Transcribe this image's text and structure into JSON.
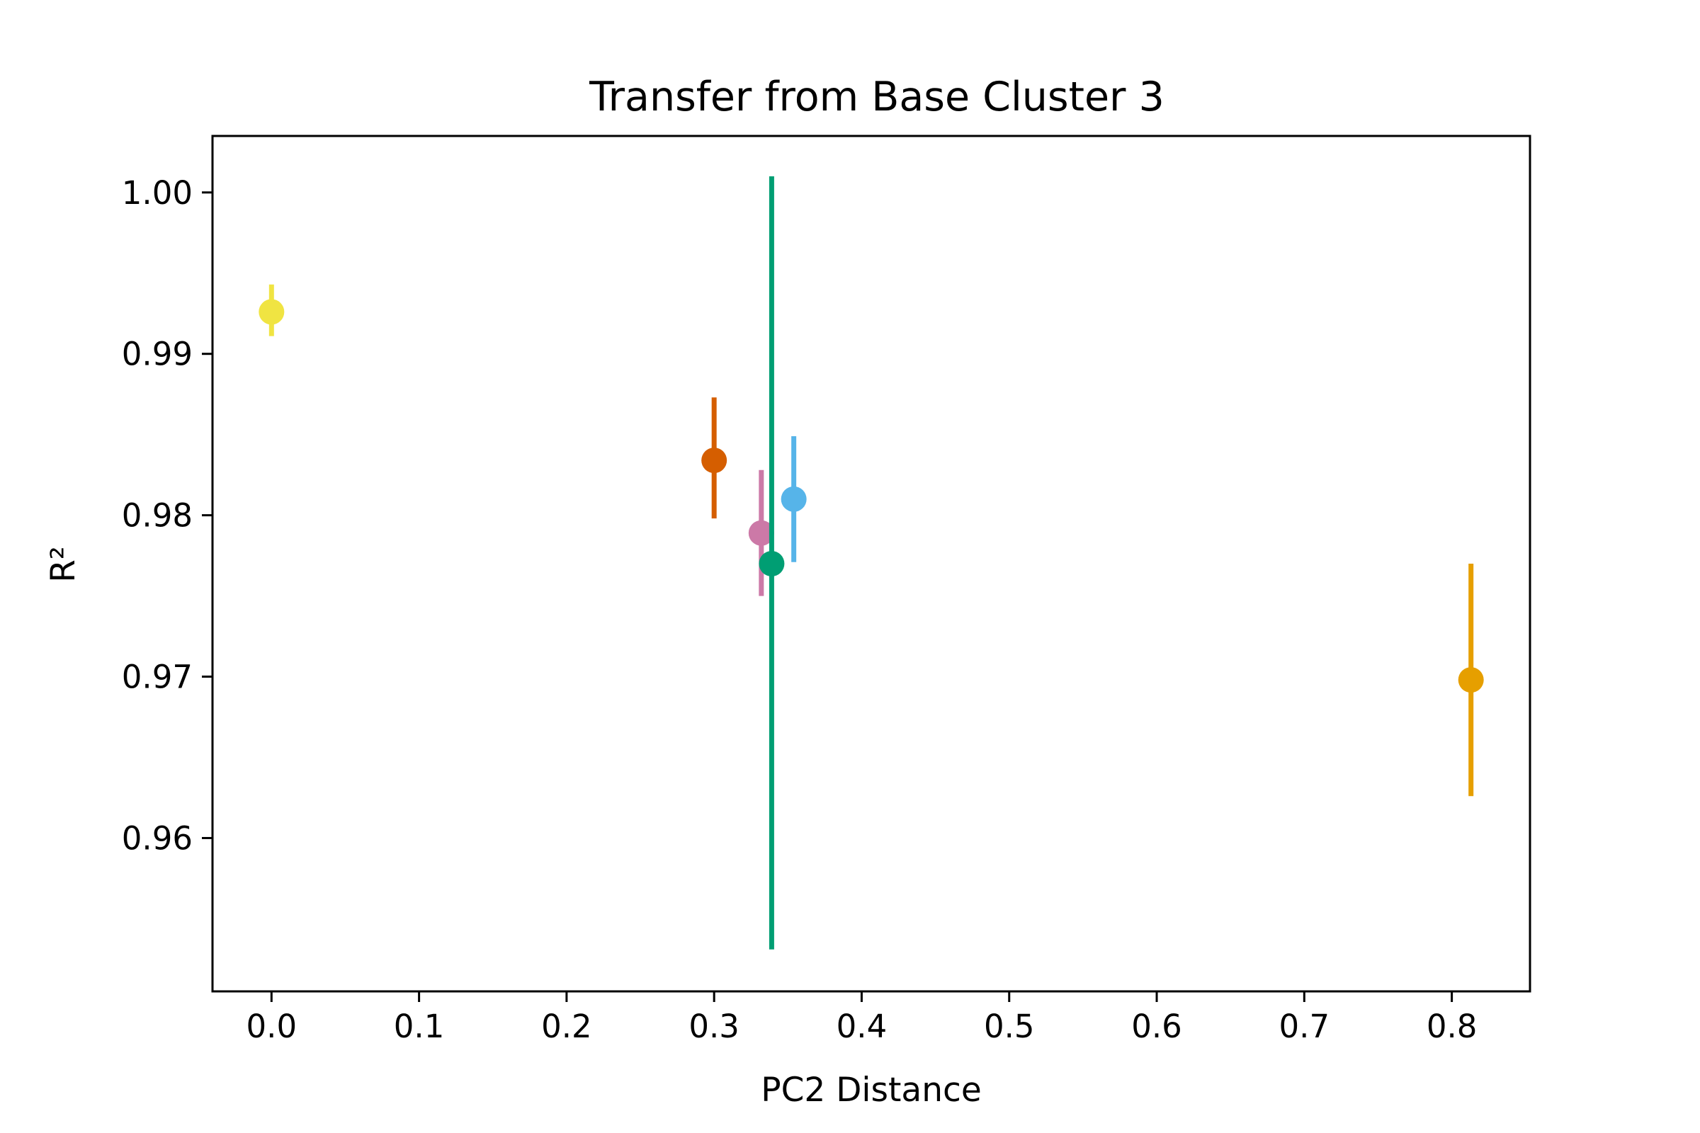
{
  "chart_data": {
    "type": "scatter",
    "title": "Transfer from Base Cluster 3",
    "xlabel": "PC2 Distance",
    "ylabel": "R²",
    "xlim": [
      -0.04,
      0.853
    ],
    "ylim": [
      0.9505,
      1.0035
    ],
    "xticks": [
      0.0,
      0.1,
      0.2,
      0.3,
      0.4,
      0.5,
      0.6,
      0.7,
      0.8
    ],
    "xtick_labels": [
      "0.0",
      "0.1",
      "0.2",
      "0.3",
      "0.4",
      "0.5",
      "0.6",
      "0.7",
      "0.8"
    ],
    "yticks": [
      0.96,
      0.97,
      0.98,
      0.99,
      1.0
    ],
    "ytick_labels": [
      "0.96",
      "0.97",
      "0.98",
      "0.99",
      "1.00"
    ],
    "grid": false,
    "points": [
      {
        "x": 0.0,
        "y": 0.9926,
        "err_low": 0.9911,
        "err_high": 0.9943,
        "color": "#f0e442"
      },
      {
        "x": 0.3,
        "y": 0.9834,
        "err_low": 0.9798,
        "err_high": 0.9873,
        "color": "#d55e00"
      },
      {
        "x": 0.332,
        "y": 0.9789,
        "err_low": 0.975,
        "err_high": 0.9828,
        "color": "#cc79a7"
      },
      {
        "x": 0.339,
        "y": 0.977,
        "err_low": 0.9531,
        "err_high": 1.001,
        "color": "#009e73"
      },
      {
        "x": 0.354,
        "y": 0.981,
        "err_low": 0.9771,
        "err_high": 0.9849,
        "color": "#56b4e9"
      },
      {
        "x": 0.813,
        "y": 0.9698,
        "err_low": 0.9626,
        "err_high": 0.977,
        "color": "#e69f00"
      }
    ]
  }
}
